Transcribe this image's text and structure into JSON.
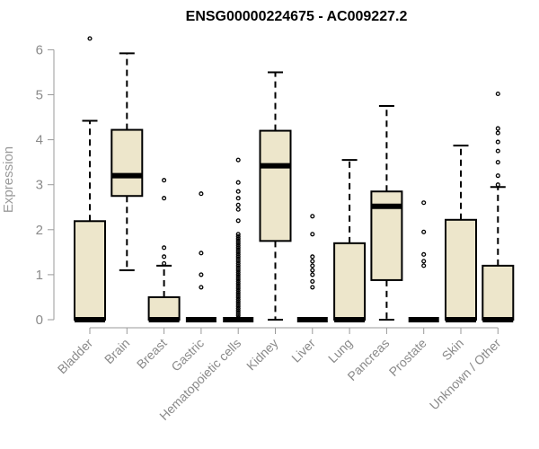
{
  "chart_data": {
    "type": "box",
    "title": "ENSG00000224675 - AC009227.2",
    "ylabel": "Expression",
    "xlabel": "",
    "ylim": [
      0,
      6.3
    ],
    "yticks": [
      0,
      1,
      2,
      3,
      4,
      5,
      6
    ],
    "box_fill": "#ede6cb",
    "box_stroke": "#000000",
    "axis_color": "#9a9a9a",
    "categories": [
      "Bladder",
      "Brain",
      "Breast",
      "Gastric",
      "Hematopoietic cells",
      "Kidney",
      "Liver",
      "Lung",
      "Pancreas",
      "Prostate",
      "Skin",
      "Unknown / Other"
    ],
    "boxes": [
      {
        "q1": 0,
        "median": 0,
        "q3": 2.19,
        "whisker_low": 0,
        "whisker_high": 4.42,
        "outliers": [
          6.25
        ]
      },
      {
        "q1": 2.75,
        "median": 3.2,
        "q3": 4.22,
        "whisker_low": 1.1,
        "whisker_high": 5.92,
        "outliers": []
      },
      {
        "q1": 0,
        "median": 0,
        "q3": 0.5,
        "whisker_low": 0,
        "whisker_high": 1.2,
        "outliers": [
          1.25,
          1.4,
          1.6,
          2.7,
          3.1
        ]
      },
      {
        "q1": 0,
        "median": 0,
        "q3": 0,
        "whisker_low": 0,
        "whisker_high": 0,
        "outliers": [
          0.72,
          1.0,
          1.48,
          2.8
        ]
      },
      {
        "q1": 0,
        "median": 0,
        "q3": 0,
        "whisker_low": 0,
        "whisker_high": 0,
        "outliers": [
          0.05,
          0.1,
          0.15,
          0.2,
          0.25,
          0.3,
          0.35,
          0.4,
          0.45,
          0.5,
          0.55,
          0.6,
          0.65,
          0.7,
          0.75,
          0.8,
          0.85,
          0.9,
          0.95,
          1.0,
          1.05,
          1.1,
          1.15,
          1.2,
          1.25,
          1.3,
          1.35,
          1.4,
          1.45,
          1.5,
          1.55,
          1.6,
          1.65,
          1.7,
          1.75,
          1.8,
          1.85,
          1.9,
          2.2,
          2.45,
          2.55,
          2.7,
          2.85,
          3.05,
          3.55
        ]
      },
      {
        "q1": 1.75,
        "median": 3.42,
        "q3": 4.2,
        "whisker_low": 0,
        "whisker_high": 5.5,
        "outliers": []
      },
      {
        "q1": 0,
        "median": 0,
        "q3": 0,
        "whisker_low": 0,
        "whisker_high": 0,
        "outliers": [
          0.72,
          0.85,
          1.0,
          1.1,
          1.2,
          1.3,
          1.4,
          1.9,
          2.3
        ]
      },
      {
        "q1": 0,
        "median": 0,
        "q3": 1.7,
        "whisker_low": 0,
        "whisker_high": 3.55,
        "outliers": []
      },
      {
        "q1": 0.88,
        "median": 2.52,
        "q3": 2.85,
        "whisker_low": 0,
        "whisker_high": 4.75,
        "outliers": []
      },
      {
        "q1": 0,
        "median": 0,
        "q3": 0,
        "whisker_low": 0,
        "whisker_high": 0,
        "outliers": [
          1.2,
          1.3,
          1.45,
          1.95,
          2.6
        ]
      },
      {
        "q1": 0,
        "median": 0,
        "q3": 2.22,
        "whisker_low": 0,
        "whisker_high": 3.87,
        "outliers": []
      },
      {
        "q1": 0,
        "median": 0,
        "q3": 1.2,
        "whisker_low": 0,
        "whisker_high": 2.95,
        "outliers": [
          3.0,
          3.2,
          3.5,
          3.75,
          3.95,
          4.15,
          4.25,
          5.02
        ]
      }
    ]
  }
}
